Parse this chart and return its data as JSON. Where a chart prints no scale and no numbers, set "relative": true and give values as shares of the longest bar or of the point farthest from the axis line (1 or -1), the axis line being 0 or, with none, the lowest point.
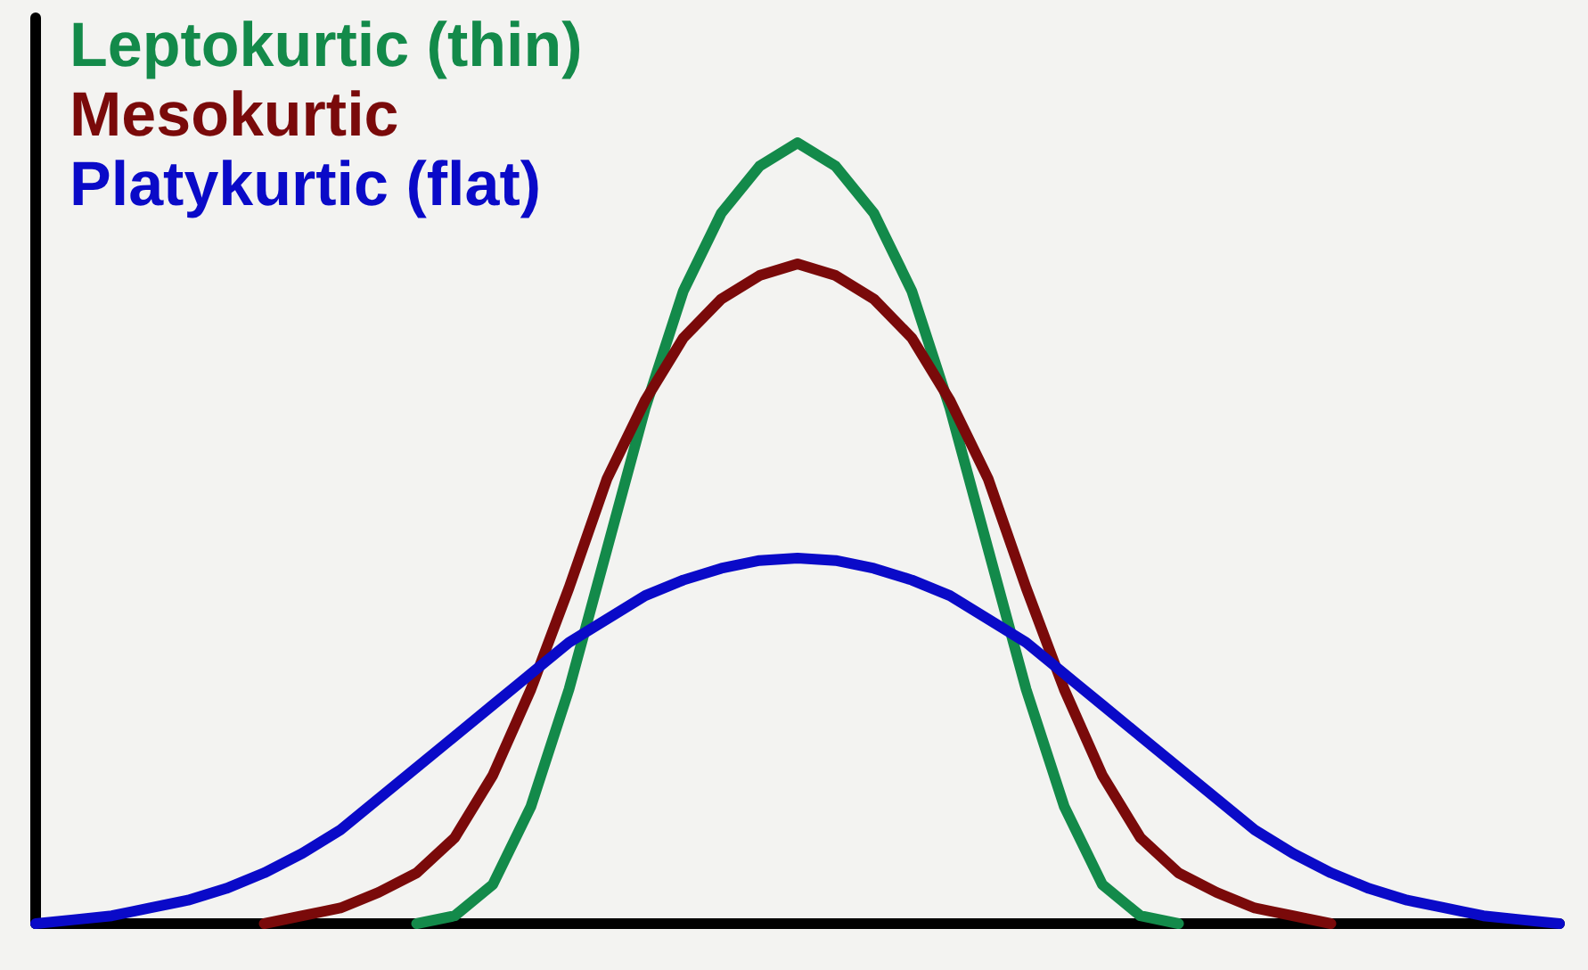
{
  "chart_data": {
    "type": "line",
    "relative": true,
    "legend": "top left",
    "marker": "none",
    "line_style": "solid",
    "grid": false,
    "categories": [
      null,
      null,
      null,
      null,
      null,
      null,
      null,
      null,
      null,
      null,
      null,
      null,
      null,
      null,
      null,
      null,
      null,
      null,
      null,
      null,
      null,
      null,
      null,
      null,
      null,
      null,
      null,
      null,
      null,
      null,
      null,
      null,
      null,
      null,
      null,
      null,
      null,
      null,
      null,
      null,
      null
    ],
    "series": [
      {
        "name": "Leptokurtic (thin)",
        "color": "#138a4a",
        "values": [
          null,
          null,
          null,
          null,
          null,
          null,
          null,
          null,
          null,
          null,
          0,
          0.01,
          0.05,
          0.15,
          0.3,
          0.48,
          0.66,
          0.81,
          0.91,
          0.97,
          1,
          0.97,
          0.91,
          0.81,
          0.66,
          0.48,
          0.3,
          0.15,
          0.05,
          0.01,
          0,
          null,
          null,
          null,
          null,
          null,
          null,
          null,
          null,
          null,
          null
        ]
      },
      {
        "name": "Mesokurtic",
        "color": "#7a0a0a",
        "values": [
          null,
          null,
          null,
          null,
          null,
          null,
          0,
          0.01,
          0.02,
          0.04,
          0.065,
          0.11,
          0.19,
          0.3,
          0.43,
          0.57,
          0.67,
          0.75,
          0.8,
          0.83,
          0.845,
          0.83,
          0.8,
          0.75,
          0.67,
          0.57,
          0.43,
          0.3,
          0.19,
          0.11,
          0.065,
          0.04,
          0.02,
          0.01,
          0,
          null,
          null,
          null,
          null,
          null,
          null
        ]
      },
      {
        "name": "Platykurtic (flat)",
        "color": "#0a0ac8",
        "values": [
          0,
          0.005,
          0.01,
          0.02,
          0.03,
          0.045,
          0.065,
          0.09,
          0.12,
          0.16,
          0.2,
          0.24,
          0.28,
          0.32,
          0.36,
          0.39,
          0.42,
          0.44,
          0.455,
          0.465,
          0.468,
          0.465,
          0.455,
          0.44,
          0.42,
          0.39,
          0.36,
          0.32,
          0.28,
          0.24,
          0.2,
          0.16,
          0.12,
          0.09,
          0.065,
          0.045,
          0.03,
          0.02,
          0.01,
          0.005,
          0
        ]
      }
    ]
  }
}
